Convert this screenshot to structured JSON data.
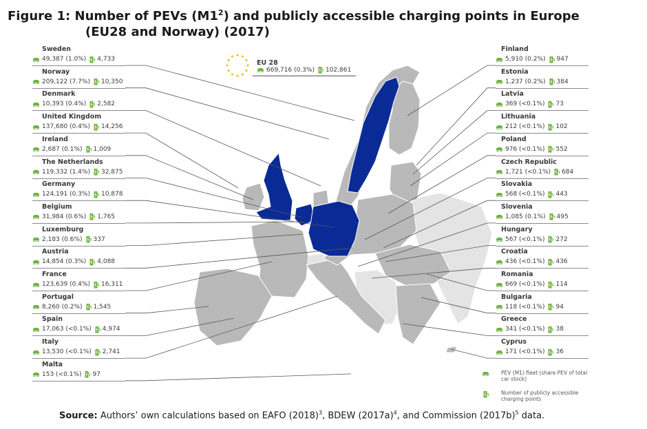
{
  "title": {
    "line1_prefix": "Figure 1:  Number of PEVs (M1",
    "line1_sup": "2",
    "line1_suffix": ") and publicly accessible charging points in Europe",
    "line2": "(EU28 and Norway) (2017)"
  },
  "eu28": {
    "name": "EU 28",
    "pev": "669,716 (0.3%)",
    "charging": "102,861"
  },
  "countries_left": [
    {
      "name": "Sweden",
      "pev": "49,387 (1.0%)",
      "charging": "4,733",
      "highlight": true
    },
    {
      "name": "Norway",
      "pev": "209,122 (7.7%)",
      "charging": "10,350",
      "highlight": false
    },
    {
      "name": "Denmark",
      "pev": "10,393 (0.4%)",
      "charging": "2,582",
      "highlight": false
    },
    {
      "name": "United Kingdom",
      "pev": "137,680 (0.4%)",
      "charging": "14,256",
      "highlight": true
    },
    {
      "name": "Ireland",
      "pev": "2,687 (0.1%)",
      "charging": "1,009",
      "highlight": false
    },
    {
      "name": "The Netherlands",
      "pev": "119,332 (1.4%)",
      "charging": "32,875",
      "highlight": true
    },
    {
      "name": "Germany",
      "pev": "124,191 (0.3%)",
      "charging": "10,878",
      "highlight": true
    },
    {
      "name": "Belgium",
      "pev": "31,984 (0.6%)",
      "charging": "1,765",
      "highlight": false
    },
    {
      "name": "Luxemburg",
      "pev": "2,183 (0.6%)",
      "charging": "337",
      "highlight": false
    },
    {
      "name": "Austria",
      "pev": "14,854 (0.3%)",
      "charging": "4,088",
      "highlight": false
    },
    {
      "name": "France",
      "pev": "123,639 (0.4%)",
      "charging": "16,311",
      "highlight": false
    },
    {
      "name": "Portugal",
      "pev": "8,260 (0.2%)",
      "charging": "1,545",
      "highlight": false
    },
    {
      "name": "Spain",
      "pev": "17,063 (<0.1%)",
      "charging": "4,974",
      "highlight": false
    },
    {
      "name": "Italy",
      "pev": "13,530 (<0.1%)",
      "charging": "2,741",
      "highlight": false
    },
    {
      "name": "Malta",
      "pev": "153 (<0.1%)",
      "charging": "97",
      "highlight": false
    }
  ],
  "countries_right": [
    {
      "name": "Finland",
      "pev": "5,910 (0.2%)",
      "charging": "947"
    },
    {
      "name": "Estonia",
      "pev": "1,237 (0.2%)",
      "charging": "384"
    },
    {
      "name": "Latvia",
      "pev": "369 (<0.1%)",
      "charging": "73"
    },
    {
      "name": "Lithuania",
      "pev": "212 (<0.1%)",
      "charging": "102"
    },
    {
      "name": "Poland",
      "pev": "976 (<0.1%)",
      "charging": "552"
    },
    {
      "name": "Czech Republic",
      "pev": "1,721 (<0.1%)",
      "charging": "684"
    },
    {
      "name": "Slovakia",
      "pev": "568 (<0.1%)",
      "charging": "443"
    },
    {
      "name": "Slovenia",
      "pev": "1,085 (0.1%)",
      "charging": "495"
    },
    {
      "name": "Hungary",
      "pev": "567 (<0.1%)",
      "charging": "272"
    },
    {
      "name": "Croatia",
      "pev": "436 (<0.1%)",
      "charging": "436"
    },
    {
      "name": "Romania",
      "pev": "669 (<0.1%)",
      "charging": "114"
    },
    {
      "name": "Bulgaria",
      "pev": "118 (<0.1%)",
      "charging": "94"
    },
    {
      "name": "Greece",
      "pev": "341 (<0.1%)",
      "charging": "38"
    },
    {
      "name": "Cyprus",
      "pev": "171 (<0.1%)",
      "charging": "36"
    }
  ],
  "legend": {
    "pev_label": "PEV (M1) fleet (share PEV of total car stock)",
    "charging_label": "Number of publicly accessible charging points"
  },
  "source": {
    "label": "Source:",
    "text_1": " Authors’ own calculations based on EAFO (2018)",
    "sup_1": "3",
    "text_2": ", BDEW (2017a)",
    "sup_2": "4",
    "text_3": ", and Commission (2017b)",
    "sup_3": "5",
    "text_4": " data."
  },
  "colors": {
    "highlight_country": "#0a2b96",
    "other_country": "#b9b9b9",
    "non_eu": "#e4e4e4",
    "icon_green": "#6cb33f",
    "eu_star": "#f0c419",
    "leader_line": "#555555"
  }
}
